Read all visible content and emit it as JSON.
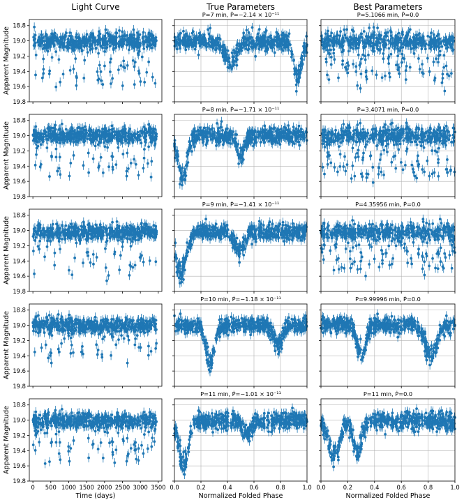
{
  "figure": {
    "column_titles": [
      "Light Curve",
      "True Parameters",
      "Best Parameters"
    ],
    "xlabels": [
      "Time (days)",
      "Normalized Folded Phase",
      "Normalized Folded Phase"
    ],
    "ylabel": "Apparent Magnitude"
  },
  "colors": {
    "marker": "#1f77b4",
    "grid": "#b0b0b0",
    "axes": "#000000"
  },
  "chart_data": [
    {
      "type": "scatter",
      "panel": "light-curve-1",
      "title": "",
      "xlabel": "",
      "ylabel": "Apparent Magnitude",
      "xlim": [
        -100,
        3600
      ],
      "ylim": [
        19.8,
        18.72
      ],
      "inverted_y": true,
      "xticks": [
        0,
        500,
        1000,
        1500,
        2000,
        2500,
        3000,
        3500
      ],
      "yticks": [
        "18.8",
        "19.0",
        "19.2",
        "19.4",
        "19.6",
        "19.8"
      ],
      "grid": false,
      "model": {
        "base": 19.01,
        "scatter": 0.055,
        "dips": [
          {
            "depth": 0.55,
            "prob": 0.1
          }
        ]
      },
      "error_bar": 0.06
    },
    {
      "type": "scatter",
      "panel": "true-params-1",
      "title": "P=7 min, Ṗ=−2.14 × 10⁻¹¹",
      "xlim": [
        0,
        1
      ],
      "ylim": [
        19.8,
        18.72
      ],
      "inverted_y": true,
      "grid": true,
      "model": {
        "base": 19.01,
        "scatter": 0.055,
        "dips": [
          {
            "center": 0.42,
            "width": 0.045,
            "depth": 0.28
          },
          {
            "center": 0.93,
            "width": 0.03,
            "depth": 0.5
          }
        ]
      },
      "error_bar": 0.06
    },
    {
      "type": "scatter",
      "panel": "best-params-1",
      "title": "P=5.1066 min, Ṗ=0.0",
      "xlim": [
        0,
        1
      ],
      "ylim": [
        19.8,
        18.72
      ],
      "inverted_y": true,
      "grid": true,
      "model": {
        "base": 19.01,
        "scatter": 0.06,
        "dips": [
          {
            "depth": 0.5,
            "prob": 0.15
          }
        ]
      },
      "error_bar": 0.06
    },
    {
      "type": "scatter",
      "panel": "light-curve-2",
      "xlabel": "",
      "ylabel": "Apparent Magnitude",
      "xlim": [
        -100,
        3600
      ],
      "ylim": [
        19.8,
        18.72
      ],
      "inverted_y": true,
      "yticks": [
        "18.8",
        "19.0",
        "19.2",
        "19.4",
        "19.6",
        "19.8"
      ],
      "grid": false,
      "model": {
        "base": 19.0,
        "scatter": 0.055,
        "dips": [
          {
            "depth": 0.55,
            "prob": 0.1
          }
        ]
      },
      "error_bar": 0.06
    },
    {
      "type": "scatter",
      "panel": "true-params-2",
      "title": "P=8 min, Ṗ=−1.71 × 10⁻¹¹",
      "xlim": [
        0,
        1
      ],
      "ylim": [
        19.8,
        18.72
      ],
      "inverted_y": true,
      "grid": true,
      "model": {
        "base": 19.0,
        "scatter": 0.055,
        "dips": [
          {
            "center": 0.06,
            "width": 0.035,
            "depth": 0.58
          },
          {
            "center": 0.5,
            "width": 0.025,
            "depth": 0.3
          }
        ]
      },
      "error_bar": 0.06
    },
    {
      "type": "scatter",
      "panel": "best-params-2",
      "title": "P=3.4071 min, Ṗ=0.0",
      "xlim": [
        0,
        1
      ],
      "ylim": [
        19.8,
        18.72
      ],
      "inverted_y": true,
      "grid": true,
      "model": {
        "base": 19.0,
        "scatter": 0.06,
        "dips": [
          {
            "depth": 0.5,
            "prob": 0.15
          }
        ]
      },
      "error_bar": 0.06
    },
    {
      "type": "scatter",
      "panel": "light-curve-3",
      "xlabel": "",
      "ylabel": "Apparent Magnitude",
      "xlim": [
        -100,
        3600
      ],
      "ylim": [
        19.8,
        18.72
      ],
      "inverted_y": true,
      "yticks": [
        "18.8",
        "19.0",
        "19.2",
        "19.4",
        "19.6",
        "19.8"
      ],
      "grid": false,
      "model": {
        "base": 19.02,
        "scatter": 0.05,
        "dips": [
          {
            "depth": 0.55,
            "prob": 0.1
          }
        ]
      },
      "error_bar": 0.06
    },
    {
      "type": "scatter",
      "panel": "true-params-3",
      "title": "P=9 min, Ṗ=−1.41 × 10⁻¹¹",
      "xlim": [
        0,
        1
      ],
      "ylim": [
        19.8,
        18.72
      ],
      "inverted_y": true,
      "grid": true,
      "model": {
        "base": 19.02,
        "scatter": 0.05,
        "dips": [
          {
            "center": 0.05,
            "width": 0.04,
            "depth": 0.58
          },
          {
            "center": 0.49,
            "width": 0.035,
            "depth": 0.28
          }
        ]
      },
      "error_bar": 0.06
    },
    {
      "type": "scatter",
      "panel": "best-params-3",
      "title": "P=4.35956 min, Ṗ=0.0",
      "xlim": [
        0,
        1
      ],
      "ylim": [
        19.8,
        18.72
      ],
      "inverted_y": true,
      "grid": true,
      "model": {
        "base": 19.02,
        "scatter": 0.055,
        "dips": [
          {
            "depth": 0.5,
            "prob": 0.15
          }
        ]
      },
      "error_bar": 0.06
    },
    {
      "type": "scatter",
      "panel": "light-curve-4",
      "xlabel": "",
      "ylabel": "Apparent Magnitude",
      "xlim": [
        -100,
        3600
      ],
      "ylim": [
        19.8,
        18.72
      ],
      "inverted_y": true,
      "yticks": [
        "18.8",
        "19.0",
        "19.2",
        "19.4",
        "19.6",
        "19.8"
      ],
      "grid": false,
      "model": {
        "base": 19.0,
        "scatter": 0.05,
        "dips": [
          {
            "depth": 0.45,
            "prob": 0.09
          }
        ]
      },
      "error_bar": 0.06
    },
    {
      "type": "scatter",
      "panel": "true-params-4",
      "title": "P=10 min, Ṗ=−1.18 × 10⁻¹¹",
      "xlim": [
        0,
        1
      ],
      "ylim": [
        19.8,
        18.72
      ],
      "inverted_y": true,
      "grid": true,
      "model": {
        "base": 19.0,
        "scatter": 0.05,
        "dips": [
          {
            "center": 0.27,
            "width": 0.03,
            "depth": 0.55
          },
          {
            "center": 0.78,
            "width": 0.035,
            "depth": 0.25
          }
        ]
      },
      "error_bar": 0.06
    },
    {
      "type": "scatter",
      "panel": "best-params-4",
      "title": "P=9.99996 min, Ṗ=0.0",
      "xlim": [
        0,
        1
      ],
      "ylim": [
        19.8,
        18.72
      ],
      "inverted_y": true,
      "grid": true,
      "model": {
        "base": 19.0,
        "scatter": 0.05,
        "dips": [
          {
            "center": 0.3,
            "width": 0.03,
            "depth": 0.45
          },
          {
            "center": 0.82,
            "width": 0.04,
            "depth": 0.45
          }
        ]
      },
      "error_bar": 0.06
    },
    {
      "type": "scatter",
      "panel": "light-curve-5",
      "xlabel": "Time (days)",
      "ylabel": "Apparent Magnitude",
      "xlim": [
        -100,
        3600
      ],
      "ylim": [
        19.8,
        18.72
      ],
      "inverted_y": true,
      "xticks": [
        0,
        500,
        1000,
        1500,
        2000,
        2500,
        3000,
        3500
      ],
      "yticks": [
        "18.8",
        "19.0",
        "19.2",
        "19.4",
        "19.6",
        "19.8"
      ],
      "grid": false,
      "model": {
        "base": 19.01,
        "scatter": 0.055,
        "dips": [
          {
            "depth": 0.55,
            "prob": 0.09
          }
        ]
      },
      "error_bar": 0.06
    },
    {
      "type": "scatter",
      "panel": "true-params-5",
      "title": "P=11 min, Ṗ=−1.01 × 10⁻¹¹",
      "xlabel": "Normalized Folded Phase",
      "xlim": [
        0,
        1
      ],
      "ylim": [
        19.8,
        18.72
      ],
      "inverted_y": true,
      "xticks": [
        "0.0",
        "0.2",
        "0.4",
        "0.6",
        "0.8",
        "1.0"
      ],
      "grid": true,
      "model": {
        "base": 19.01,
        "scatter": 0.055,
        "dips": [
          {
            "center": 0.07,
            "width": 0.035,
            "depth": 0.62
          },
          {
            "center": 0.55,
            "width": 0.03,
            "depth": 0.18
          }
        ]
      },
      "error_bar": 0.06
    },
    {
      "type": "scatter",
      "panel": "best-params-5",
      "title": "P=11 min, Ṗ=0.0",
      "xlabel": "Normalized Folded Phase",
      "xlim": [
        0,
        1
      ],
      "ylim": [
        19.8,
        18.72
      ],
      "inverted_y": true,
      "xticks": [
        "0.0",
        "0.2",
        "0.4",
        "0.6",
        "0.8",
        "1.0"
      ],
      "grid": true,
      "model": {
        "base": 19.01,
        "scatter": 0.055,
        "dips": [
          {
            "center": 0.1,
            "width": 0.04,
            "depth": 0.5
          },
          {
            "center": 0.27,
            "width": 0.03,
            "depth": 0.5
          }
        ]
      },
      "error_bar": 0.06
    }
  ]
}
